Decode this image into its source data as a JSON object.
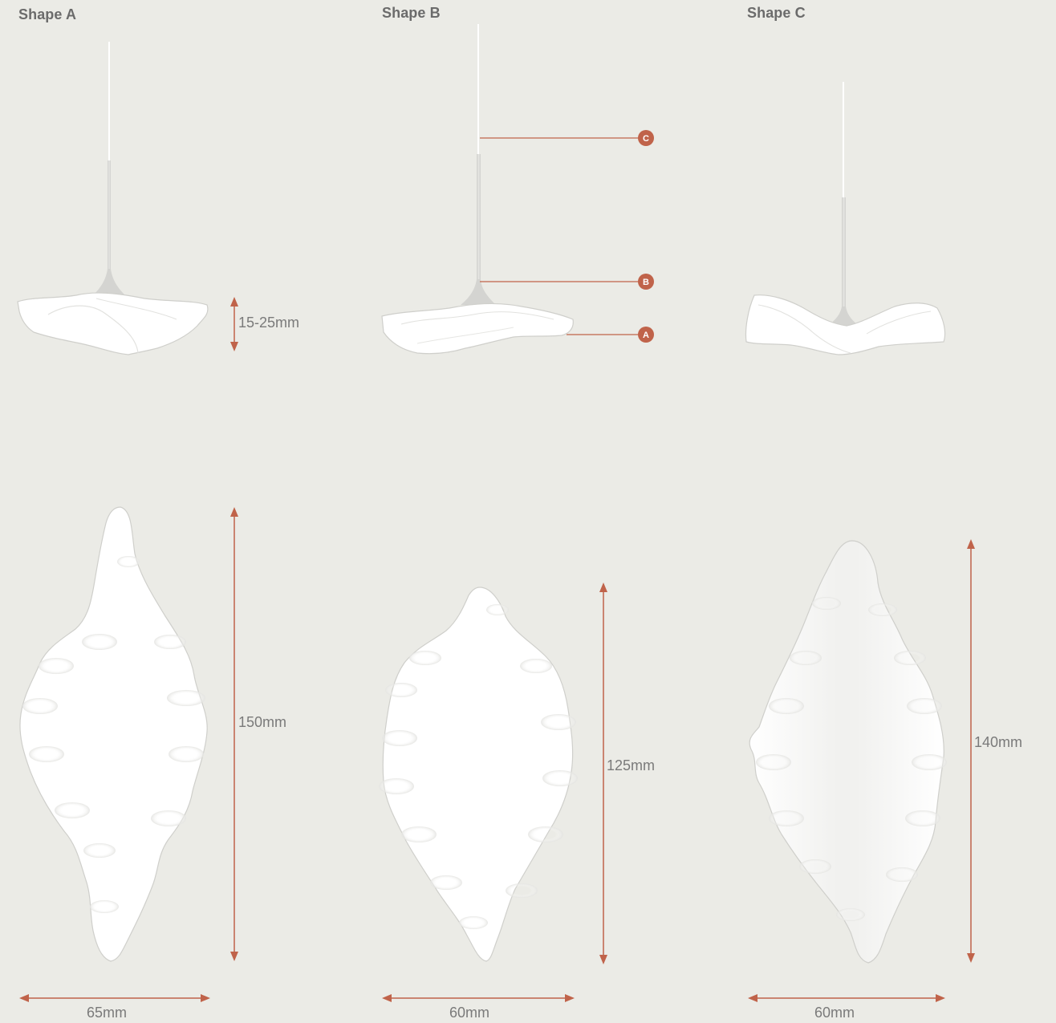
{
  "colors": {
    "background": "#ebebe6",
    "accent": "#c0634a",
    "shade": "#ffffff",
    "shade_outline": "#cfcfcb",
    "stem": "#d9d9d6",
    "label_text": "#7a7a7a"
  },
  "shapes": [
    {
      "title": "Shape A",
      "height_label": "15-25mm",
      "length_label": "150mm",
      "width_label": "65mm"
    },
    {
      "title": "Shape B",
      "length_label": "125mm",
      "width_label": "60mm",
      "callouts": [
        "C",
        "B",
        "A"
      ]
    },
    {
      "title": "Shape C",
      "length_label": "140mm",
      "width_label": "60mm"
    }
  ]
}
